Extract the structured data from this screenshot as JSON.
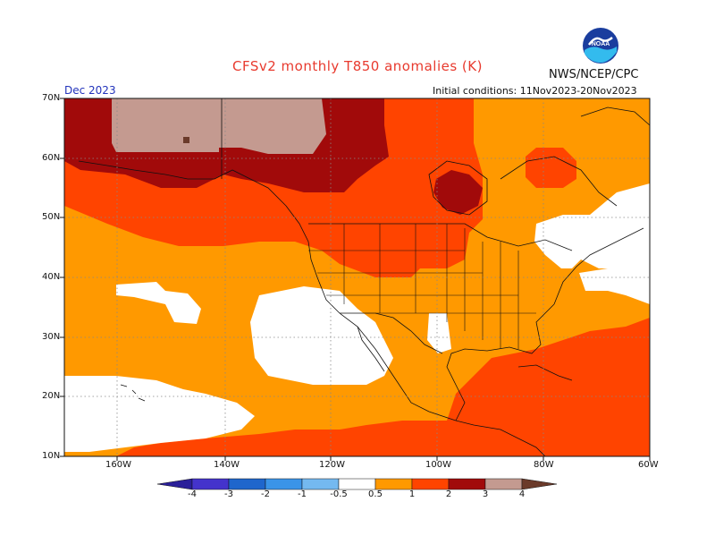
{
  "header": {
    "title": "CFSv2 monthly T850 anomalies (K)",
    "agency": "NWS/NCEP/CPC",
    "period": "Dec 2023",
    "initial_conditions": "Initial conditions: 11Nov2023-20Nov2023",
    "logo_text": "NOAA"
  },
  "map": {
    "lat_labels": [
      "70N",
      "60N",
      "50N",
      "40N",
      "30N",
      "20N",
      "10N"
    ],
    "lon_labels": [
      "160W",
      "140W",
      "120W",
      "100W",
      "80W",
      "60W"
    ]
  },
  "colorbar": {
    "labels": [
      "-4",
      "-3",
      "-2",
      "-1",
      "-0.5",
      "0.5",
      "1",
      "2",
      "3",
      "4"
    ],
    "bins": [
      {
        "range": "< -4",
        "color": "#2a1f99"
      },
      {
        "range": "-4 to -3",
        "color": "#4433cc"
      },
      {
        "range": "-3 to -2",
        "color": "#1f66cc"
      },
      {
        "range": "-2 to -1",
        "color": "#3a94e8"
      },
      {
        "range": "-1 to -0.5",
        "color": "#74b9f0"
      },
      {
        "range": "-0.5 to 0.5",
        "color": "#ffffff"
      },
      {
        "range": "0.5 to 1",
        "color": "#ff9900"
      },
      {
        "range": "1 to 2",
        "color": "#ff4400"
      },
      {
        "range": "2 to 3",
        "color": "#a10a0a"
      },
      {
        "range": "3 to 4",
        "color": "#c49a90"
      },
      {
        "range": "> 4",
        "color": "#6b3a2a"
      }
    ]
  },
  "colors": {
    "white": "#ffffff",
    "orange": "#ff9900",
    "redorange": "#ff4400",
    "darkred": "#a10a0a",
    "tan": "#c49a90",
    "brown": "#6b3a2a"
  }
}
